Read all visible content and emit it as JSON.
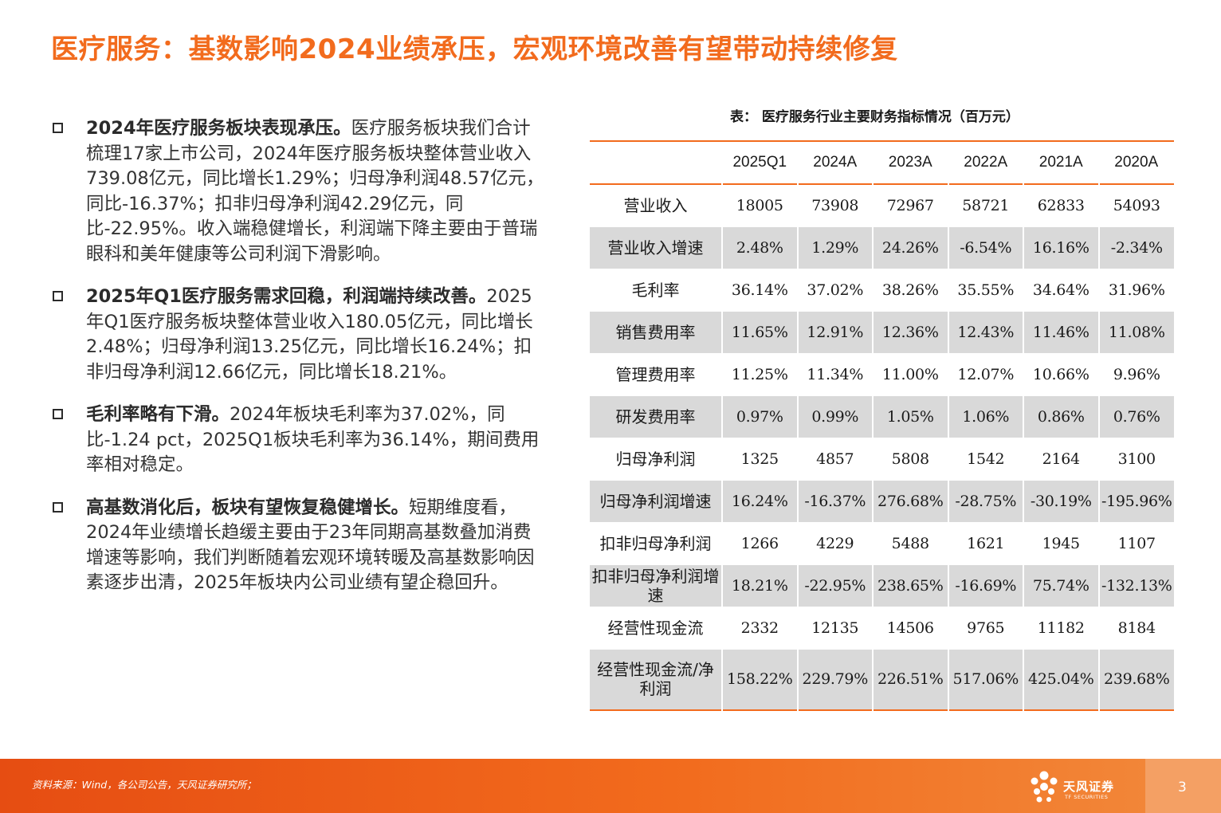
{
  "title": "医疗服务：基数影响2024业绩承压，宏观环境改善有望带动持续修复",
  "bullets": [
    {
      "lead": "2024年医疗服务板块表现承压。",
      "text": "医疗服务板块我们合计梳理17家上市公司，2024年医疗服务板块整体营业收入739.08亿元，同比增长1.29%；归母净利润48.57亿元，同比-16.37%；扣非归母净利润42.29亿元，同比-22.95%。收入端稳健增长，利润端下降主要由于普瑞眼科和美年健康等公司利润下滑影响。"
    },
    {
      "lead": "2025年Q1医疗服务需求回稳，利润端持续改善。",
      "text": "2025年Q1医疗服务板块整体营业收入180.05亿元，同比增长2.48%；归母净利润13.25亿元，同比增长16.24%；扣非归母净利润12.66亿元，同比增长18.21%。"
    },
    {
      "lead": "毛利率略有下滑。",
      "text": "2024年板块毛利率为37.02%，同比-1.24 pct，2025Q1板块毛利率为36.14%，期间费用率相对稳定。"
    },
    {
      "lead": "高基数消化后，板块有望恢复稳健增长。",
      "text": "短期维度看，2024年业绩增长趋缓主要由于23年同期高基数叠加消费增速等影响，我们判断随着宏观环境转暖及高基数影响因素逐步出清，2025年板块内公司业绩有望企稳回升。"
    }
  ],
  "table": {
    "caption": "表： 医疗服务行业主要财务指标情况（百万元）",
    "columns": [
      "",
      "2025Q1",
      "2024A",
      "2023A",
      "2022A",
      "2021A",
      "2020A"
    ],
    "rows": [
      {
        "label": "营业收入",
        "values": [
          "18005",
          "73908",
          "72967",
          "58721",
          "62833",
          "54093"
        ]
      },
      {
        "label": "营业收入增速",
        "values": [
          "2.48%",
          "1.29%",
          "24.26%",
          "-6.54%",
          "16.16%",
          "-2.34%"
        ]
      },
      {
        "label": "毛利率",
        "values": [
          "36.14%",
          "37.02%",
          "38.26%",
          "35.55%",
          "34.64%",
          "31.96%"
        ]
      },
      {
        "label": "销售费用率",
        "values": [
          "11.65%",
          "12.91%",
          "12.36%",
          "12.43%",
          "11.46%",
          "11.08%"
        ]
      },
      {
        "label": "管理费用率",
        "values": [
          "11.25%",
          "11.34%",
          "11.00%",
          "12.07%",
          "10.66%",
          "9.96%"
        ]
      },
      {
        "label": "研发费用率",
        "values": [
          "0.97%",
          "0.99%",
          "1.05%",
          "1.06%",
          "0.86%",
          "0.76%"
        ]
      },
      {
        "label": "归母净利润",
        "values": [
          "1325",
          "4857",
          "5808",
          "1542",
          "2164",
          "3100"
        ]
      },
      {
        "label": "归母净利润增速",
        "values": [
          "16.24%",
          "-16.37%",
          "276.68%",
          "-28.75%",
          "-30.19%",
          "-195.96%"
        ]
      },
      {
        "label": "扣非归母净利润",
        "values": [
          "1266",
          "4229",
          "5488",
          "1621",
          "1945",
          "1107"
        ]
      },
      {
        "label": "扣非归母净利润增速",
        "values": [
          "18.21%",
          "-22.95%",
          "238.65%",
          "-16.69%",
          "75.74%",
          "-132.13%"
        ]
      },
      {
        "label": "经营性现金流",
        "values": [
          "2332",
          "12135",
          "14506",
          "9765",
          "11182",
          "8184"
        ]
      },
      {
        "label": "经营性现金流/净利润",
        "values": [
          "158.22%",
          "229.79%",
          "226.51%",
          "517.06%",
          "425.04%",
          "239.68%"
        ]
      }
    ]
  },
  "footer": {
    "source": "资料来源：Wind，各公司公告，天风证券研究所；",
    "logo_cn": "天风证券",
    "logo_en": "TF SECURITIES",
    "page_number": "3"
  },
  "colors": {
    "accent": "#f26b1d",
    "shade": "#d9d9d9",
    "footer_light": "#f4a064"
  }
}
